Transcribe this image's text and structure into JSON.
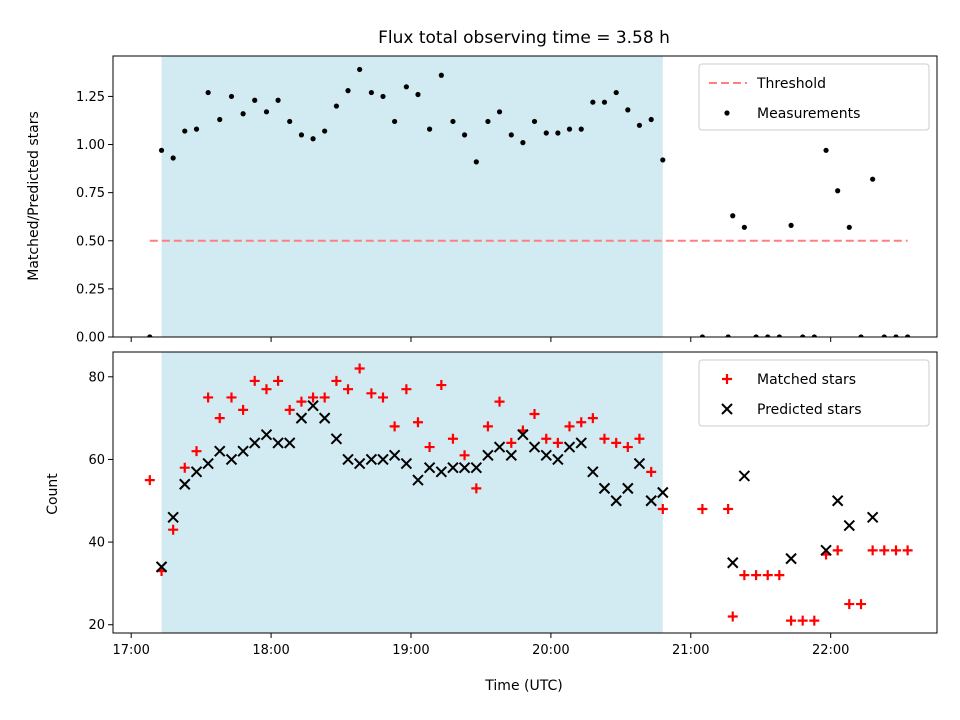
{
  "chart_data": {
    "title": "Flux total observing time = 3.58 h",
    "xlabel": "Time (UTC)",
    "x_tick_labels": [
      "17:00",
      "18:00",
      "19:00",
      "20:00",
      "21:00",
      "22:00"
    ],
    "x_tick_values_h": [
      17,
      18,
      19,
      20,
      21,
      22
    ],
    "xlim_h": [
      16.87,
      22.76
    ],
    "observing_window_h": [
      17.217,
      20.8
    ],
    "observing_window_color": "#add8e6",
    "panels": [
      {
        "type": "scatter",
        "ylabel": "Matched/Predicted stars",
        "ylim": [
          0,
          1.46
        ],
        "y_tick_values": [
          0,
          0.25,
          0.5,
          0.75,
          1.0,
          1.25
        ],
        "y_tick_labels": [
          "0.00",
          "0.25",
          "0.50",
          "0.75",
          "1.00",
          "1.25"
        ],
        "threshold": {
          "name": "Threshold",
          "y": 0.5,
          "x_range_h": [
            17.133,
            22.55
          ],
          "color": "#ff7f7f"
        },
        "series": [
          {
            "name": "Measurements",
            "color": "#000000",
            "points": [
              [
                17.133,
                0.0
              ],
              [
                17.217,
                0.97
              ],
              [
                17.3,
                0.93
              ],
              [
                17.383,
                1.07
              ],
              [
                17.467,
                1.08
              ],
              [
                17.55,
                1.27
              ],
              [
                17.633,
                1.13
              ],
              [
                17.717,
                1.25
              ],
              [
                17.8,
                1.16
              ],
              [
                17.883,
                1.23
              ],
              [
                17.967,
                1.17
              ],
              [
                18.05,
                1.23
              ],
              [
                18.133,
                1.12
              ],
              [
                18.217,
                1.05
              ],
              [
                18.3,
                1.03
              ],
              [
                18.383,
                1.07
              ],
              [
                18.467,
                1.2
              ],
              [
                18.55,
                1.28
              ],
              [
                18.633,
                1.39
              ],
              [
                18.717,
                1.27
              ],
              [
                18.8,
                1.25
              ],
              [
                18.883,
                1.12
              ],
              [
                18.967,
                1.3
              ],
              [
                19.05,
                1.26
              ],
              [
                19.133,
                1.08
              ],
              [
                19.217,
                1.36
              ],
              [
                19.3,
                1.12
              ],
              [
                19.383,
                1.05
              ],
              [
                19.467,
                0.91
              ],
              [
                19.55,
                1.12
              ],
              [
                19.633,
                1.17
              ],
              [
                19.717,
                1.05
              ],
              [
                19.8,
                1.01
              ],
              [
                19.883,
                1.12
              ],
              [
                19.967,
                1.06
              ],
              [
                20.05,
                1.06
              ],
              [
                20.133,
                1.08
              ],
              [
                20.217,
                1.08
              ],
              [
                20.3,
                1.22
              ],
              [
                20.383,
                1.22
              ],
              [
                20.467,
                1.27
              ],
              [
                20.55,
                1.18
              ],
              [
                20.633,
                1.1
              ],
              [
                20.717,
                1.13
              ],
              [
                20.8,
                0.92
              ],
              [
                21.083,
                0.0
              ],
              [
                21.267,
                0.0
              ],
              [
                21.3,
                0.63
              ],
              [
                21.383,
                0.57
              ],
              [
                21.467,
                0.0
              ],
              [
                21.55,
                0.0
              ],
              [
                21.633,
                0.0
              ],
              [
                21.717,
                0.58
              ],
              [
                21.8,
                0.0
              ],
              [
                21.883,
                0.0
              ],
              [
                21.967,
                0.97
              ],
              [
                22.05,
                0.76
              ],
              [
                22.133,
                0.57
              ],
              [
                22.217,
                0.0
              ],
              [
                22.3,
                0.82
              ],
              [
                22.383,
                0.0
              ],
              [
                22.467,
                0.0
              ],
              [
                22.55,
                0.0
              ]
            ]
          }
        ],
        "legend": {
          "location": "upper right",
          "entries": [
            "Threshold",
            "Measurements"
          ]
        }
      },
      {
        "type": "scatter",
        "ylabel": "Count",
        "ylim": [
          18,
          86
        ],
        "y_tick_values": [
          20,
          40,
          60,
          80
        ],
        "y_tick_labels": [
          "20",
          "40",
          "60",
          "80"
        ],
        "series": [
          {
            "name": "Matched stars",
            "marker": "+",
            "color": "#ff0000",
            "points": [
              [
                17.133,
                55
              ],
              [
                17.217,
                33
              ],
              [
                17.3,
                43
              ],
              [
                17.383,
                58
              ],
              [
                17.467,
                62
              ],
              [
                17.55,
                75
              ],
              [
                17.633,
                70
              ],
              [
                17.717,
                75
              ],
              [
                17.8,
                72
              ],
              [
                17.883,
                79
              ],
              [
                17.967,
                77
              ],
              [
                18.05,
                79
              ],
              [
                18.133,
                72
              ],
              [
                18.217,
                74
              ],
              [
                18.3,
                75
              ],
              [
                18.383,
                75
              ],
              [
                18.467,
                79
              ],
              [
                18.55,
                77
              ],
              [
                18.633,
                82
              ],
              [
                18.717,
                76
              ],
              [
                18.8,
                75
              ],
              [
                18.883,
                68
              ],
              [
                18.967,
                77
              ],
              [
                19.05,
                69
              ],
              [
                19.133,
                63
              ],
              [
                19.217,
                78
              ],
              [
                19.3,
                65
              ],
              [
                19.383,
                61
              ],
              [
                19.467,
                53
              ],
              [
                19.55,
                68
              ],
              [
                19.633,
                74
              ],
              [
                19.717,
                64
              ],
              [
                19.8,
                67
              ],
              [
                19.883,
                71
              ],
              [
                19.967,
                65
              ],
              [
                20.05,
                64
              ],
              [
                20.133,
                68
              ],
              [
                20.217,
                69
              ],
              [
                20.3,
                70
              ],
              [
                20.383,
                65
              ],
              [
                20.467,
                64
              ],
              [
                20.55,
                63
              ],
              [
                20.633,
                65
              ],
              [
                20.717,
                57
              ],
              [
                20.8,
                48
              ],
              [
                21.083,
                48
              ],
              [
                21.267,
                48
              ],
              [
                21.3,
                22
              ],
              [
                21.383,
                32
              ],
              [
                21.467,
                32
              ],
              [
                21.55,
                32
              ],
              [
                21.633,
                32
              ],
              [
                21.717,
                21
              ],
              [
                21.8,
                21
              ],
              [
                21.883,
                21
              ],
              [
                21.967,
                37
              ],
              [
                22.05,
                38
              ],
              [
                22.133,
                25
              ],
              [
                22.217,
                25
              ],
              [
                22.3,
                38
              ],
              [
                22.383,
                38
              ],
              [
                22.467,
                38
              ],
              [
                22.55,
                38
              ]
            ]
          },
          {
            "name": "Predicted stars",
            "marker": "x",
            "color": "#000000",
            "points": [
              [
                17.217,
                34
              ],
              [
                17.3,
                46
              ],
              [
                17.383,
                54
              ],
              [
                17.467,
                57
              ],
              [
                17.55,
                59
              ],
              [
                17.633,
                62
              ],
              [
                17.717,
                60
              ],
              [
                17.8,
                62
              ],
              [
                17.883,
                64
              ],
              [
                17.967,
                66
              ],
              [
                18.05,
                64
              ],
              [
                18.133,
                64
              ],
              [
                18.217,
                70
              ],
              [
                18.3,
                73
              ],
              [
                18.383,
                70
              ],
              [
                18.467,
                65
              ],
              [
                18.55,
                60
              ],
              [
                18.633,
                59
              ],
              [
                18.717,
                60
              ],
              [
                18.8,
                60
              ],
              [
                18.883,
                61
              ],
              [
                18.967,
                59
              ],
              [
                19.05,
                55
              ],
              [
                19.133,
                58
              ],
              [
                19.217,
                57
              ],
              [
                19.3,
                58
              ],
              [
                19.383,
                58
              ],
              [
                19.467,
                58
              ],
              [
                19.55,
                61
              ],
              [
                19.633,
                63
              ],
              [
                19.717,
                61
              ],
              [
                19.8,
                66
              ],
              [
                19.883,
                63
              ],
              [
                19.967,
                61
              ],
              [
                20.05,
                60
              ],
              [
                20.133,
                63
              ],
              [
                20.217,
                64
              ],
              [
                20.3,
                57
              ],
              [
                20.383,
                53
              ],
              [
                20.467,
                50
              ],
              [
                20.55,
                53
              ],
              [
                20.633,
                59
              ],
              [
                20.717,
                50
              ],
              [
                20.8,
                52
              ],
              [
                21.3,
                35
              ],
              [
                21.383,
                56
              ],
              [
                21.717,
                36
              ],
              [
                21.967,
                38
              ],
              [
                22.05,
                50
              ],
              [
                22.133,
                44
              ],
              [
                22.3,
                46
              ]
            ]
          }
        ],
        "legend": {
          "location": "upper right",
          "entries": [
            "Matched stars",
            "Predicted stars"
          ]
        }
      }
    ]
  }
}
